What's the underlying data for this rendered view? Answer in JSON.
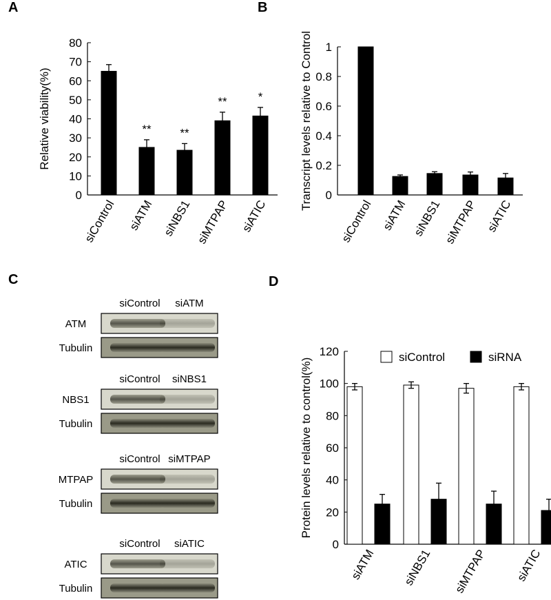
{
  "chart_data": [
    {
      "type": "bar",
      "panel": "A",
      "ylabel": "Relative viability(%)",
      "categories": [
        "siControl",
        "siATM",
        "siNBS1",
        "siMTPAP",
        "siATIC"
      ],
      "values": [
        65,
        25,
        23.5,
        39,
        41.5
      ],
      "errors": [
        3.5,
        4,
        3.5,
        4.5,
        4.5
      ],
      "annotations": [
        null,
        "**",
        "**",
        "**",
        "*"
      ],
      "color": "#000000",
      "ylim": [
        0,
        80
      ],
      "yticks": [
        0,
        10,
        20,
        30,
        40,
        50,
        60,
        70,
        80
      ]
    },
    {
      "type": "bar",
      "panel": "B",
      "ylabel": "Transcript levels relative to Control",
      "categories": [
        "siControl",
        "siATM",
        "siNBS1",
        "siMTPAP",
        "siATIC"
      ],
      "values": [
        1,
        0.125,
        0.145,
        0.135,
        0.115
      ],
      "errors": [
        null,
        0.01,
        0.012,
        0.02,
        0.03
      ],
      "color": "#000000",
      "ylim": [
        0,
        1
      ],
      "yticks": [
        0,
        0.2,
        0.4,
        0.6,
        0.8,
        1
      ]
    },
    {
      "type": "bar",
      "panel": "D",
      "ylabel": "Protein levels relative to control(%)",
      "categories": [
        "siATM",
        "siNBS1",
        "siMTPAP",
        "siATIC"
      ],
      "series": [
        {
          "name": "siControl",
          "color": "#ffffff",
          "values": [
            98,
            99,
            97,
            98
          ],
          "errors": [
            2,
            2,
            3,
            2
          ]
        },
        {
          "name": "siRNA",
          "color": "#000000",
          "values": [
            25,
            28,
            25,
            21
          ],
          "errors": [
            6,
            10,
            8,
            7
          ]
        }
      ],
      "legend": "top",
      "ylim": [
        0,
        120
      ],
      "yticks": [
        0,
        20,
        40,
        60,
        80,
        100,
        120
      ]
    }
  ],
  "blots": {
    "panel": "C",
    "groups": [
      {
        "columns": [
          "siControl",
          "siATM"
        ],
        "rows": [
          "ATM",
          "Tubulin"
        ]
      },
      {
        "columns": [
          "siControl",
          "siNBS1"
        ],
        "rows": [
          "NBS1",
          "Tubulin"
        ]
      },
      {
        "columns": [
          "siControl",
          "siMTPAP"
        ],
        "rows": [
          "MTPAP",
          "Tubulin"
        ]
      },
      {
        "columns": [
          "siControl",
          "siATIC"
        ],
        "rows": [
          "ATIC",
          "Tubulin"
        ]
      }
    ]
  }
}
